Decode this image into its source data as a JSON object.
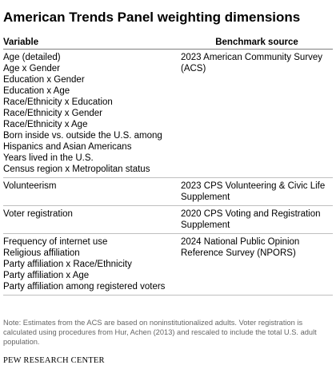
{
  "title": "American Trends Panel weighting dimensions",
  "headers": {
    "variable": "Variable",
    "benchmark": "Benchmark source"
  },
  "groups": [
    {
      "variables": [
        "Age (detailed)",
        "Age x Gender",
        "Education x Gender",
        "Education x Age",
        "Race/Ethnicity x Education",
        "Race/Ethnicity x Gender",
        "Race/Ethnicity x Age",
        "Born inside vs. outside the U.S. among Hispanics and Asian Americans",
        "Years lived in the U.S.",
        "Census region x Metropolitan status"
      ],
      "source": "2023 American Community Survey (ACS)"
    },
    {
      "variables": [
        "Volunteerism"
      ],
      "source": "2023 CPS Volunteering & Civic Life Supplement"
    },
    {
      "variables": [
        "Voter registration"
      ],
      "source": "2020 CPS Voting and Registration Supplement"
    },
    {
      "variables": [
        "Frequency of internet use",
        "Religious affiliation",
        "Party affiliation x Race/Ethnicity",
        "Party affiliation x Age",
        "Party affiliation among registered voters"
      ],
      "source": "2024 National Public Opinion Reference Survey (NPORS)"
    }
  ],
  "note": "Note: Estimates from the ACS are based on noninstitutionalized adults. Voter registration is calculated using procedures from Hur, Achen (2013) and rescaled to include the total U.S. adult population.",
  "source_label": "PEW RESEARCH CENTER"
}
